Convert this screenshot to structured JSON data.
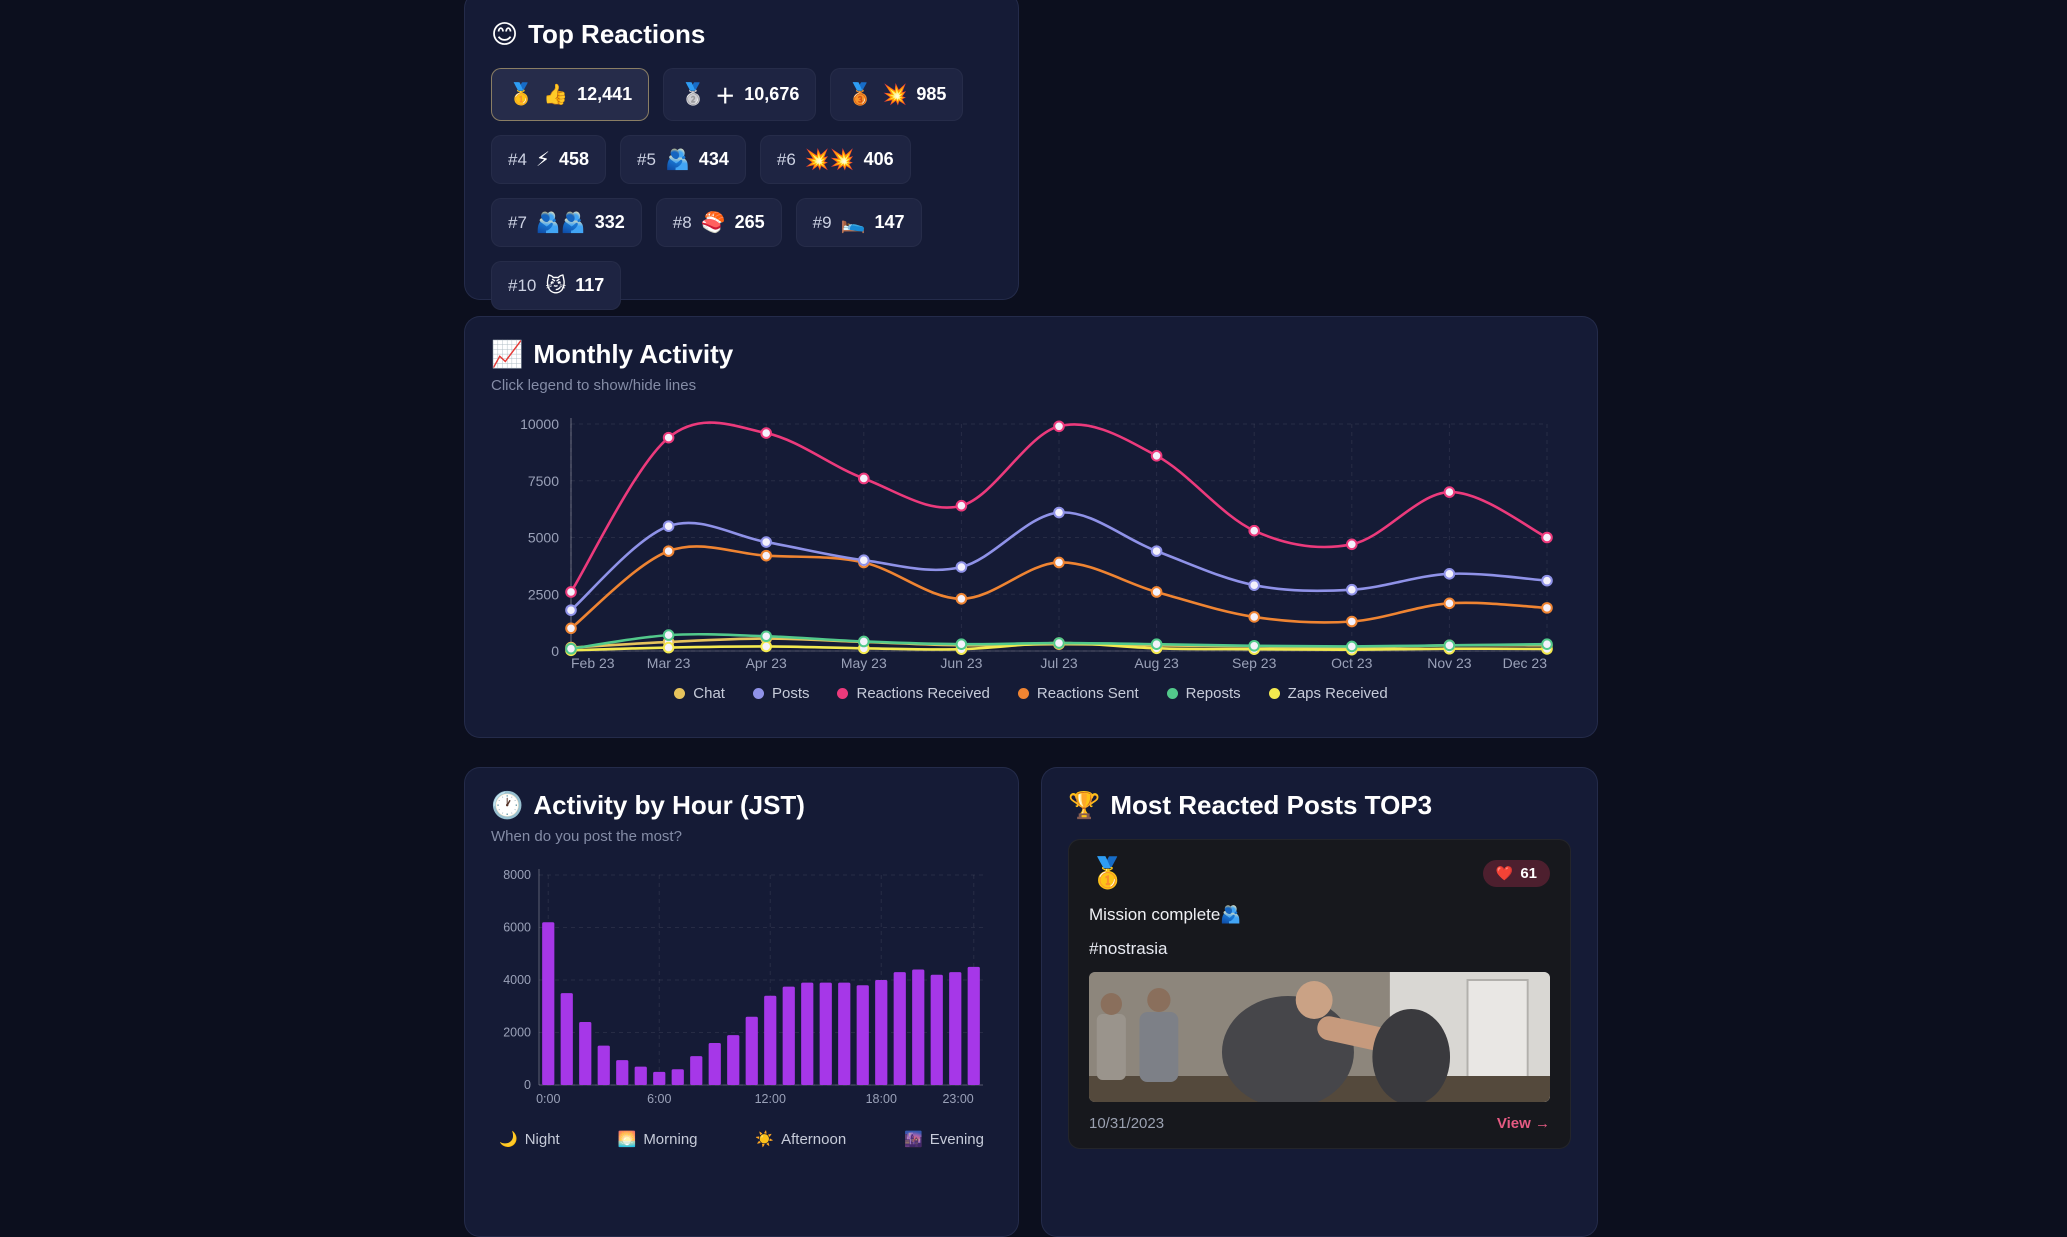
{
  "top_reactions": {
    "icon": "😊",
    "title": "Top Reactions",
    "items": [
      {
        "medal": "🥇",
        "rank": "",
        "emoji": "👍",
        "count": "12,441",
        "highlight": true
      },
      {
        "medal": "🥈",
        "rank": "",
        "emoji": "＋",
        "count": "10,676",
        "highlight": false
      },
      {
        "medal": "🥉",
        "rank": "",
        "emoji": "💥",
        "count": "985",
        "highlight": false
      },
      {
        "medal": "",
        "rank": "#4",
        "emoji": "⚡",
        "count": "458",
        "highlight": false
      },
      {
        "medal": "",
        "rank": "#5",
        "emoji": "🫂",
        "count": "434",
        "highlight": false
      },
      {
        "medal": "",
        "rank": "#6",
        "emoji": "💥💥",
        "count": "406",
        "highlight": false
      },
      {
        "medal": "",
        "rank": "#7",
        "emoji": "🫂🫂",
        "count": "332",
        "highlight": false
      },
      {
        "medal": "",
        "rank": "#8",
        "emoji": "🍣",
        "count": "265",
        "highlight": false
      },
      {
        "medal": "",
        "rank": "#9",
        "emoji": "🛌",
        "count": "147",
        "highlight": false
      },
      {
        "medal": "",
        "rank": "#10",
        "emoji": "😼",
        "count": "117",
        "highlight": false
      }
    ]
  },
  "monthly": {
    "icon": "📈",
    "title": "Monthly Activity",
    "subtitle": "Click legend to show/hide lines"
  },
  "hourly": {
    "icon": "🕐",
    "title": "Activity by Hour (JST)",
    "subtitle": "When do you post the most?",
    "legend": [
      {
        "emoji": "🌙",
        "label": "Night"
      },
      {
        "emoji": "🌅",
        "label": "Morning"
      },
      {
        "emoji": "☀️",
        "label": "Afternoon"
      },
      {
        "emoji": "🌆",
        "label": "Evening"
      }
    ]
  },
  "top_posts": {
    "icon": "🏆",
    "title": "Most Reacted Posts TOP3",
    "posts": [
      {
        "medal": "🥇",
        "reaction_emoji": "❤️",
        "reaction_count": "61",
        "text": "Mission complete🫂",
        "hashtag": "#nostrasia",
        "date": "10/31/2023",
        "view_label": "View →"
      }
    ]
  },
  "chart_data": [
    {
      "type": "line",
      "title": "Monthly Activity",
      "x": [
        "Feb 23",
        "Mar 23",
        "Apr 23",
        "May 23",
        "Jun 23",
        "Jul 23",
        "Aug 23",
        "Sep 23",
        "Oct 23",
        "Nov 23",
        "Dec 23"
      ],
      "ylim": [
        0,
        10000
      ],
      "yticks": [
        0,
        2500,
        5000,
        7500,
        10000
      ],
      "grid": true,
      "legend_position": "bottom",
      "series": [
        {
          "name": "Chat",
          "color": "#e6c35c",
          "values": [
            150,
            400,
            550,
            400,
            250,
            300,
            250,
            200,
            150,
            250,
            250
          ]
        },
        {
          "name": "Posts",
          "color": "#8f92e8",
          "values": [
            1800,
            5500,
            4800,
            4000,
            3700,
            6100,
            4400,
            2900,
            2700,
            3400,
            3100
          ]
        },
        {
          "name": "Reactions Received",
          "color": "#ec3a7c",
          "values": [
            2600,
            9400,
            9600,
            7600,
            6400,
            9900,
            8600,
            5300,
            4700,
            7000,
            5000
          ]
        },
        {
          "name": "Reactions Sent",
          "color": "#ef8432",
          "values": [
            1000,
            4400,
            4200,
            3900,
            2300,
            3900,
            2600,
            1500,
            1300,
            2100,
            1900
          ]
        },
        {
          "name": "Reposts",
          "color": "#52c98b",
          "values": [
            100,
            700,
            650,
            420,
            300,
            350,
            300,
            230,
            200,
            250,
            300
          ]
        },
        {
          "name": "Zaps Received",
          "color": "#f3e94f",
          "values": [
            30,
            150,
            200,
            120,
            80,
            350,
            120,
            80,
            60,
            100,
            90
          ]
        }
      ]
    },
    {
      "type": "bar",
      "title": "Activity by Hour (JST)",
      "categories": [
        "0:00",
        "1:00",
        "2:00",
        "3:00",
        "4:00",
        "5:00",
        "6:00",
        "7:00",
        "8:00",
        "9:00",
        "10:00",
        "11:00",
        "12:00",
        "13:00",
        "14:00",
        "15:00",
        "16:00",
        "17:00",
        "18:00",
        "19:00",
        "20:00",
        "21:00",
        "22:00",
        "23:00"
      ],
      "values": [
        6200,
        3500,
        2400,
        1500,
        950,
        700,
        500,
        600,
        1100,
        1600,
        1900,
        2600,
        3400,
        3750,
        3900,
        3900,
        3900,
        3800,
        4000,
        4300,
        4400,
        4200,
        4300,
        4500
      ],
      "bar_color": "#a637e8",
      "ylim": [
        0,
        8000
      ],
      "yticks": [
        0,
        2000,
        4000,
        6000,
        8000
      ],
      "xtick_indices": [
        0,
        6,
        12,
        18,
        23
      ],
      "xtick_labels": [
        "0:00",
        "6:00",
        "12:00",
        "18:00",
        "23:00"
      ]
    }
  ]
}
